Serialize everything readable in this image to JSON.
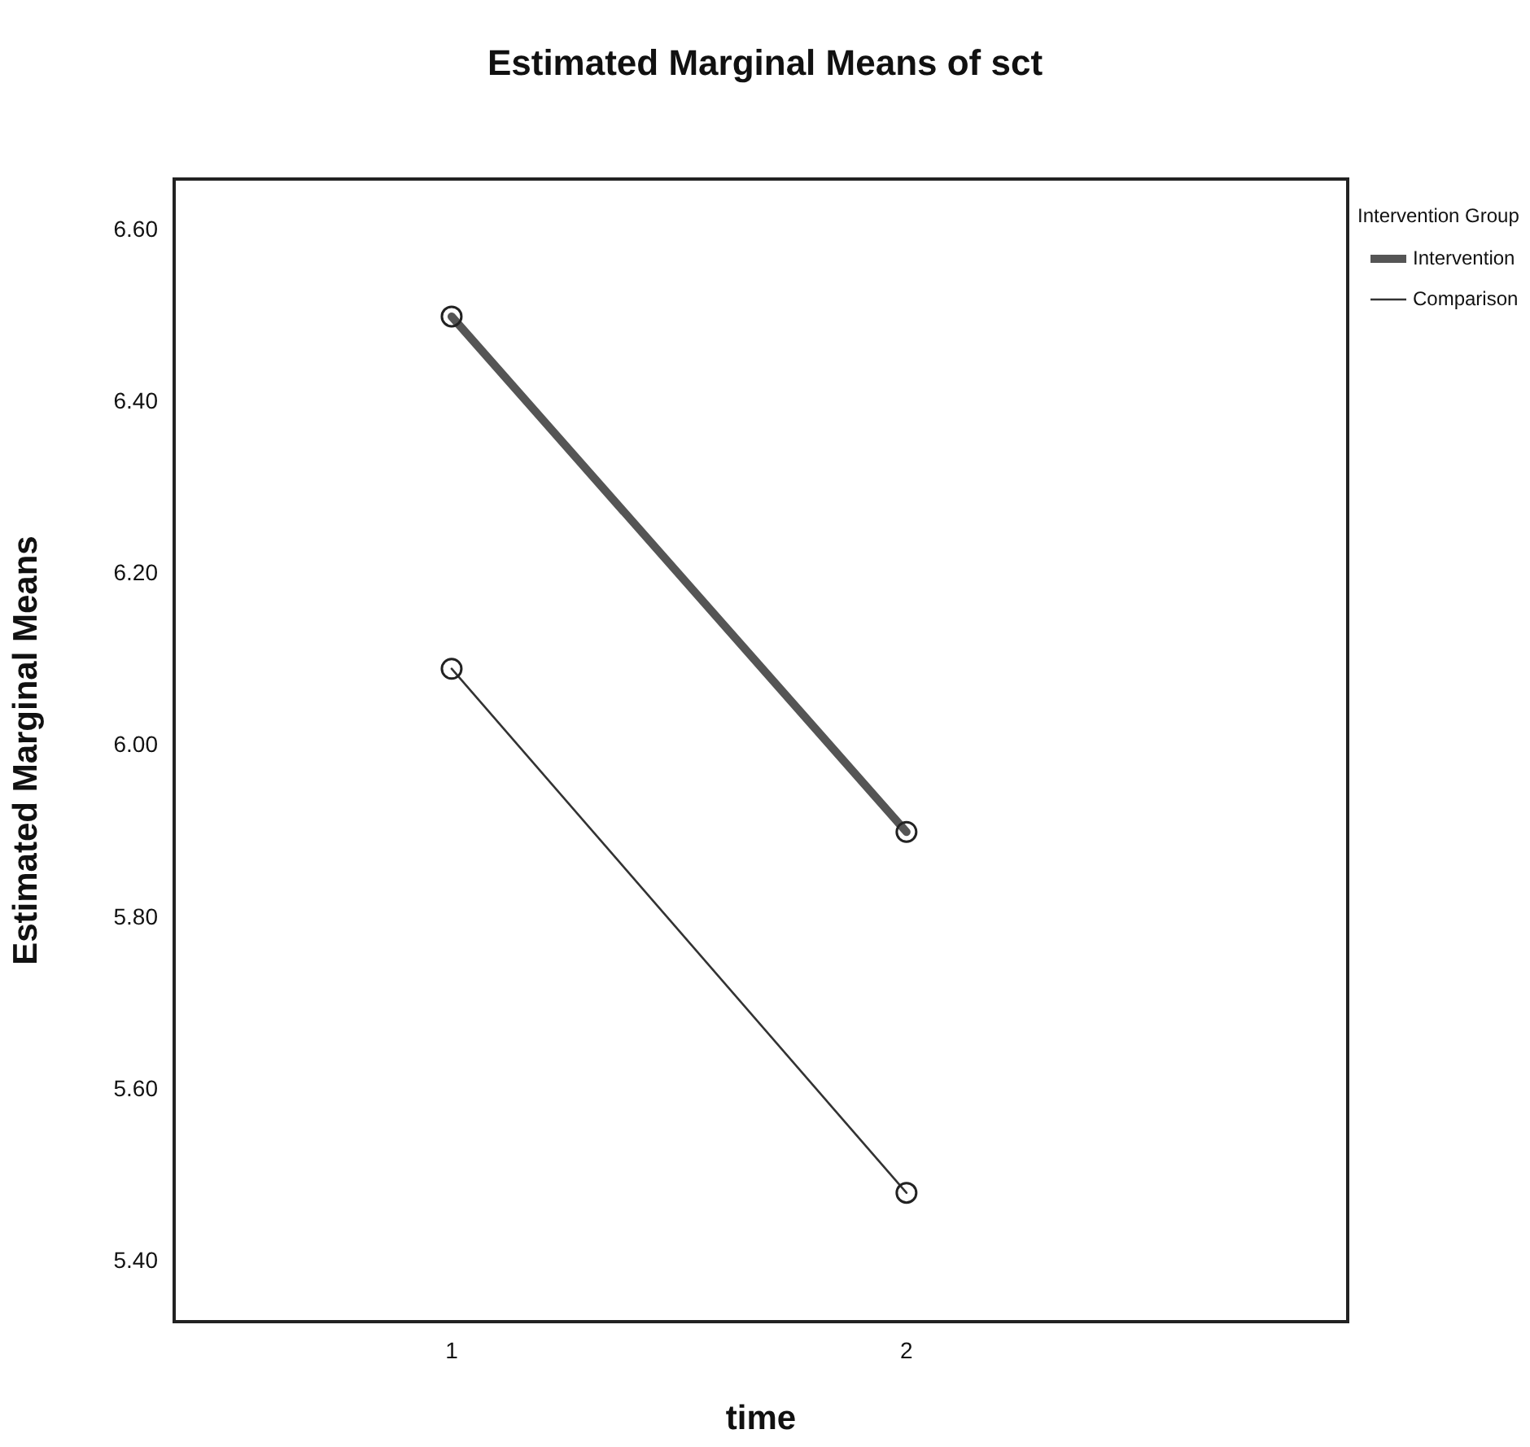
{
  "chart_data": {
    "type": "line",
    "title": "Estimated Marginal Means of sct",
    "xlabel": "time",
    "ylabel": "Estimated Marginal Means",
    "legend_title": "Intervention Group",
    "x": [
      1,
      2
    ],
    "xlim": [
      0.39,
      2.97
    ],
    "xticks": [
      1,
      2
    ],
    "ylim": [
      5.33,
      6.66
    ],
    "yticks": [
      {
        "value": 5.4,
        "label": "5.40"
      },
      {
        "value": 5.6,
        "label": "5.60"
      },
      {
        "value": 5.8,
        "label": "5.80"
      },
      {
        "value": 6.0,
        "label": "6.00"
      },
      {
        "value": 6.2,
        "label": "6.20"
      },
      {
        "value": 6.4,
        "label": "6.40"
      },
      {
        "value": 6.6,
        "label": "6.60"
      }
    ],
    "series": [
      {
        "name": "Intervention",
        "color": "#555555",
        "values": [
          6.5,
          5.9
        ]
      },
      {
        "name": "Comparison",
        "color": "#333333",
        "values": [
          6.09,
          5.48
        ]
      }
    ],
    "marker": "circle",
    "line_style": "solid",
    "grid": false,
    "legend": "top right"
  }
}
